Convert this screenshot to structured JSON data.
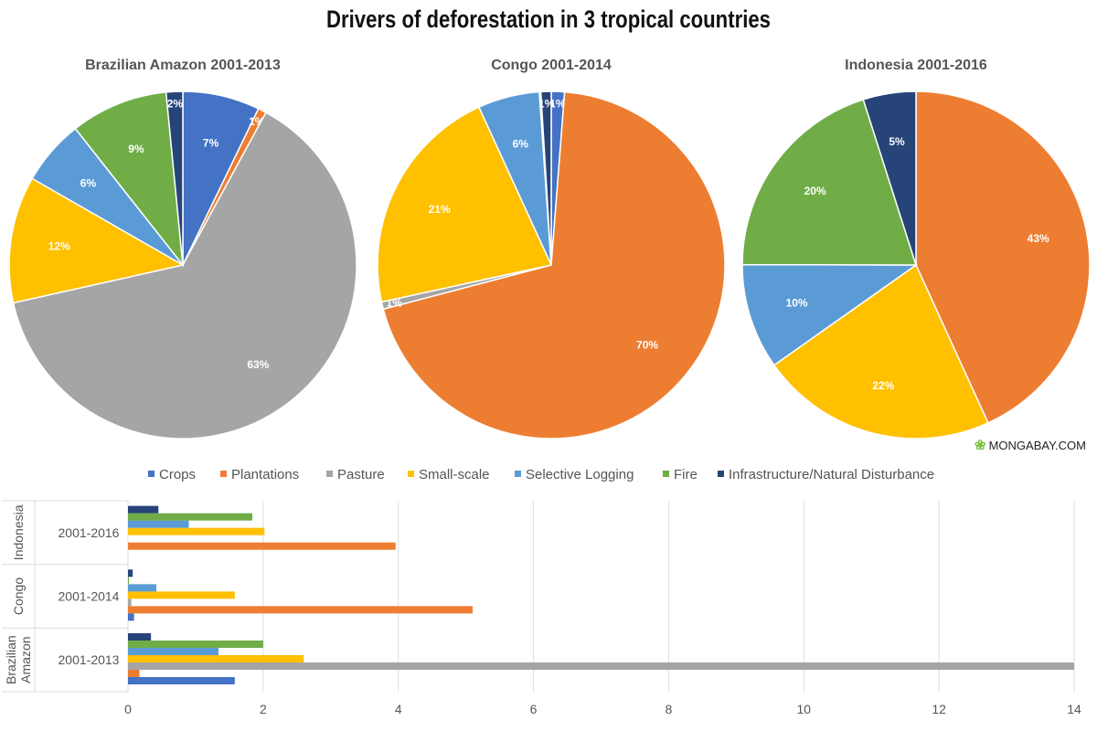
{
  "logo_text": "MONGABAY.COM",
  "colors": {
    "Crops": "#4472C4",
    "Plantations": "#ED7D31",
    "Pasture": "#A5A5A5",
    "Small-scale": "#FFC000",
    "Selective Logging": "#5B9BD5",
    "Fire": "#70AD47",
    "Infrastructure/Natural Disturbance": "#264478"
  },
  "chart_data": [
    {
      "type": "pie",
      "title": "Drivers of deforestation in 3 tropical countries",
      "legend": "bottom",
      "categories": [
        "Crops",
        "Plantations",
        "Pasture",
        "Small-scale",
        "Selective Logging",
        "Fire",
        "Infrastructure/Natural Disturbance"
      ],
      "pies": [
        {
          "title": "Brazilian Amazon 2001-2013",
          "labels": [
            "7%",
            "1%",
            "63%",
            "12%",
            "6%",
            "9%",
            "2%"
          ]
        },
        {
          "title": "Congo 2001-2014",
          "labels": [
            "1%",
            "70%",
            "1%",
            "21%",
            "6%",
            "",
            "1%"
          ]
        },
        {
          "title": "Indonesia 2001-2016",
          "labels": [
            "",
            "43%",
            "",
            "22%",
            "10%",
            "20%",
            "5%"
          ]
        }
      ]
    },
    {
      "type": "bar",
      "orientation": "horizontal",
      "categories": [
        {
          "group": "Brazilian Amazon",
          "label": "2001-2013"
        },
        {
          "group": "Congo",
          "label": "2001-2014"
        },
        {
          "group": "Indonesia",
          "label": "2001-2016"
        }
      ],
      "series": [
        {
          "name": "Crops",
          "values": [
            1.58,
            0.09,
            0
          ]
        },
        {
          "name": "Plantations",
          "values": [
            0.17,
            5.1,
            3.96
          ]
        },
        {
          "name": "Pasture",
          "values": [
            14,
            0.05,
            0
          ]
        },
        {
          "name": "Small-scale",
          "values": [
            2.6,
            1.58,
            2.02
          ]
        },
        {
          "name": "Selective Logging",
          "values": [
            1.34,
            0.42,
            0.9
          ]
        },
        {
          "name": "Fire",
          "values": [
            2.0,
            0.01,
            1.84
          ]
        },
        {
          "name": "Infrastructure/Natural Disturbance",
          "values": [
            0.34,
            0.07,
            0.45
          ]
        }
      ],
      "xlim": [
        0,
        14
      ],
      "xticks": [
        "0",
        "2",
        "4",
        "6",
        "8",
        "10",
        "12",
        "14"
      ],
      "grid": true
    }
  ]
}
